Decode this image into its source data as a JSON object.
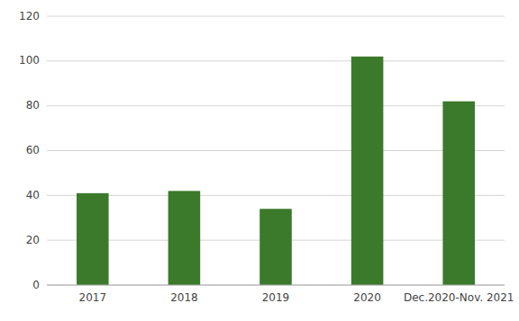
{
  "chart_data": {
    "type": "bar",
    "categories": [
      "2017",
      "2018",
      "2019",
      "2020",
      "Dec.2020-Nov. 2021"
    ],
    "values": [
      41,
      42,
      34,
      102,
      82
    ],
    "color": "#3a7a2a",
    "ylim": [
      0,
      120
    ],
    "yticks": [
      0,
      20,
      40,
      60,
      80,
      100,
      120
    ],
    "grid": true
  }
}
